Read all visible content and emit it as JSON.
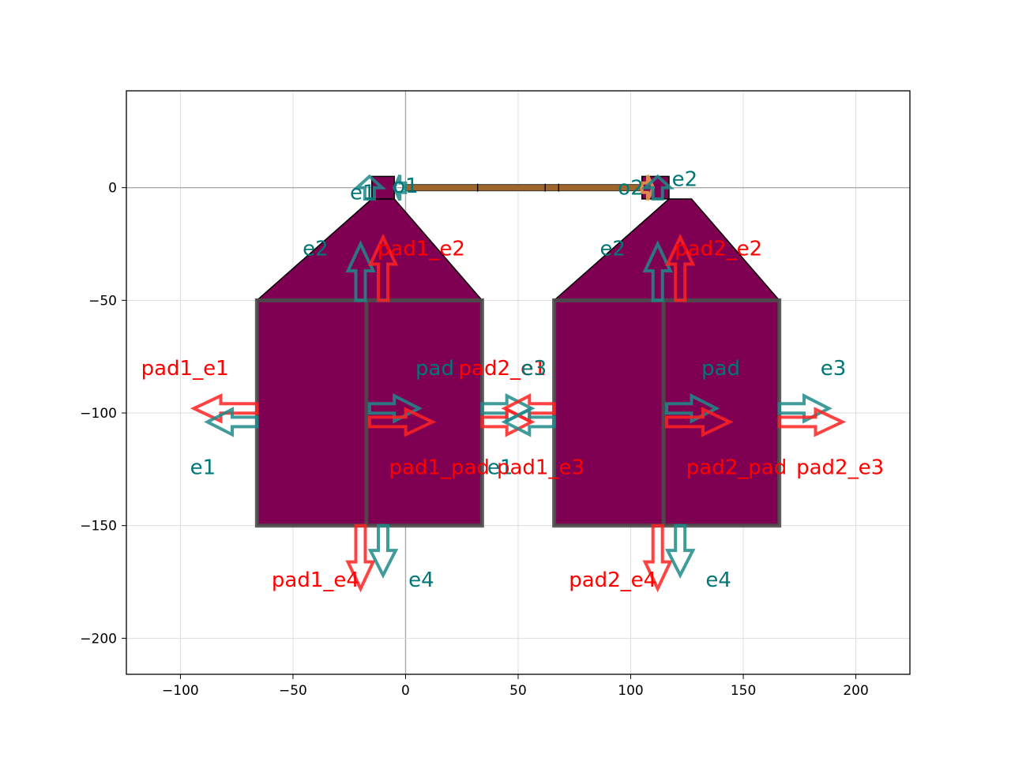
{
  "chart_data": {
    "type": "layout-diagram",
    "xlim": [
      -124,
      224
    ],
    "ylim": [
      -216,
      43
    ],
    "x_ticks": [
      {
        "value": -100,
        "label": "−100"
      },
      {
        "value": -50,
        "label": "−50"
      },
      {
        "value": 0,
        "label": "0"
      },
      {
        "value": 50,
        "label": "50"
      },
      {
        "value": 100,
        "label": "100"
      },
      {
        "value": 150,
        "label": "150"
      },
      {
        "value": 200,
        "label": "200"
      }
    ],
    "y_ticks": [
      {
        "value": 0,
        "label": "0"
      },
      {
        "value": -50,
        "label": "−50"
      },
      {
        "value": -100,
        "label": "−100"
      },
      {
        "value": -150,
        "label": "−150"
      },
      {
        "value": -200,
        "label": "−200"
      }
    ],
    "grid": true,
    "colors": {
      "pad_fill": "#7f0053",
      "pad_edge": "#4d4d4d",
      "taper_edge": "#000000",
      "wire": "#a0652b",
      "port_red": "#ff2222",
      "port_teal": "#1f8a8a",
      "label_red": "#ff0000",
      "label_teal": "#007777"
    },
    "pads": [
      {
        "name": "pad1",
        "x": [
          -66,
          34
        ],
        "y": [
          -150,
          -50
        ]
      },
      {
        "name": "pad2",
        "x": [
          66,
          166
        ],
        "y": [
          -150,
          -50
        ]
      }
    ],
    "tapers": [
      {
        "points": [
          [
            -66,
            -50
          ],
          [
            34,
            -50
          ],
          [
            -5,
            -5
          ],
          [
            -15,
            -5
          ]
        ]
      },
      {
        "points": [
          [
            66,
            -50
          ],
          [
            166,
            -50
          ],
          [
            127,
            -5
          ],
          [
            117,
            -5
          ]
        ]
      }
    ],
    "vias": [
      {
        "x": [
          -15,
          -5
        ],
        "y": [
          -5,
          5
        ]
      },
      {
        "x": [
          105,
          117
        ],
        "y": [
          -5,
          5
        ]
      }
    ],
    "wire": {
      "x": [
        0,
        105
      ],
      "y": 0,
      "ticks": [
        32,
        62,
        68
      ]
    },
    "arrows": [
      {
        "x": -66,
        "y": -98,
        "dx": -28,
        "dy": 0,
        "color": "red"
      },
      {
        "x": -66,
        "y": -104,
        "dx": -22,
        "dy": 0,
        "color": "teal"
      },
      {
        "x": -16,
        "y": -98,
        "dx": 22,
        "dy": 0,
        "color": "teal"
      },
      {
        "x": -16,
        "y": -104,
        "dx": 28,
        "dy": 0,
        "color": "red"
      },
      {
        "x": 34,
        "y": -98,
        "dx": 22,
        "dy": 0,
        "color": "teal"
      },
      {
        "x": 34,
        "y": -104,
        "dx": 22,
        "dy": 0,
        "color": "red"
      },
      {
        "x": 66,
        "y": -98,
        "dx": -22,
        "dy": 0,
        "color": "red"
      },
      {
        "x": 66,
        "y": -104,
        "dx": -22,
        "dy": 0,
        "color": "teal"
      },
      {
        "x": 116,
        "y": -98,
        "dx": 22,
        "dy": 0,
        "color": "teal"
      },
      {
        "x": 116,
        "y": -104,
        "dx": 28,
        "dy": 0,
        "color": "red"
      },
      {
        "x": 166,
        "y": -98,
        "dx": 22,
        "dy": 0,
        "color": "teal"
      },
      {
        "x": 166,
        "y": -104,
        "dx": 28,
        "dy": 0,
        "color": "red"
      },
      {
        "x": -20,
        "y": -50,
        "dx": 0,
        "dy": 25,
        "color": "teal"
      },
      {
        "x": -10,
        "y": -50,
        "dx": 0,
        "dy": 28,
        "color": "red"
      },
      {
        "x": 112,
        "y": -50,
        "dx": 0,
        "dy": 25,
        "color": "teal"
      },
      {
        "x": 122,
        "y": -50,
        "dx": 0,
        "dy": 28,
        "color": "red"
      },
      {
        "x": -20,
        "y": -150,
        "dx": 0,
        "dy": -28,
        "color": "red"
      },
      {
        "x": -10,
        "y": -150,
        "dx": 0,
        "dy": -22,
        "color": "teal"
      },
      {
        "x": 112,
        "y": -150,
        "dx": 0,
        "dy": -28,
        "color": "red"
      },
      {
        "x": 122,
        "y": -150,
        "dx": 0,
        "dy": -22,
        "color": "teal"
      },
      {
        "x": -16,
        "y": -5,
        "dx": 0,
        "dy": 10,
        "color": "teal"
      },
      {
        "x": 0,
        "y": 0,
        "dx": -5,
        "dy": 0,
        "color": "teal"
      },
      {
        "x": 105,
        "y": 0,
        "dx": 5,
        "dy": 0,
        "color": "orange"
      },
      {
        "x": 112,
        "y": -5,
        "dx": 0,
        "dy": 10,
        "color": "teal"
      }
    ],
    "labels": [
      {
        "text": "pad1_e1",
        "x": -98,
        "y": -80,
        "color": "red"
      },
      {
        "text": "e1",
        "x": -90,
        "y": -124,
        "color": "teal"
      },
      {
        "text": "pad1_e2",
        "x": 7,
        "y": -27,
        "color": "red"
      },
      {
        "text": "e2",
        "x": -40,
        "y": -27,
        "color": "teal"
      },
      {
        "text": "pad",
        "x": 13,
        "y": -80,
        "color": "teal"
      },
      {
        "text": "pad2_e1",
        "x": 43,
        "y": -80,
        "color": "red"
      },
      {
        "text": "e3",
        "x": 57,
        "y": -80,
        "color": "teal"
      },
      {
        "text": "pad1_pad",
        "x": 15,
        "y": -124,
        "color": "red"
      },
      {
        "text": "e1",
        "x": 42,
        "y": -124,
        "color": "teal"
      },
      {
        "text": "pad1_e3",
        "x": 60,
        "y": -124,
        "color": "red"
      },
      {
        "text": "pad1_e4",
        "x": -40,
        "y": -174,
        "color": "red"
      },
      {
        "text": "e4",
        "x": 7,
        "y": -174,
        "color": "teal"
      },
      {
        "text": "e1",
        "x": -19,
        "y": -2,
        "color": "teal"
      },
      {
        "text": "o1",
        "x": 0,
        "y": 1,
        "color": "teal"
      },
      {
        "text": "o2",
        "x": 100,
        "y": 0,
        "color": "teal"
      },
      {
        "text": "e2",
        "x": 124,
        "y": 4,
        "color": "teal"
      },
      {
        "text": "pad2_e2",
        "x": 139,
        "y": -27,
        "color": "red"
      },
      {
        "text": "e2",
        "x": 92,
        "y": -27,
        "color": "teal"
      },
      {
        "text": "pad",
        "x": 140,
        "y": -80,
        "color": "teal"
      },
      {
        "text": "e3",
        "x": 190,
        "y": -80,
        "color": "teal"
      },
      {
        "text": "pad2_pad",
        "x": 147,
        "y": -124,
        "color": "red"
      },
      {
        "text": "pad2_e3",
        "x": 193,
        "y": -124,
        "color": "red"
      },
      {
        "text": "pad2_e4",
        "x": 92,
        "y": -174,
        "color": "red"
      },
      {
        "text": "e4",
        "x": 139,
        "y": -174,
        "color": "teal"
      }
    ]
  }
}
